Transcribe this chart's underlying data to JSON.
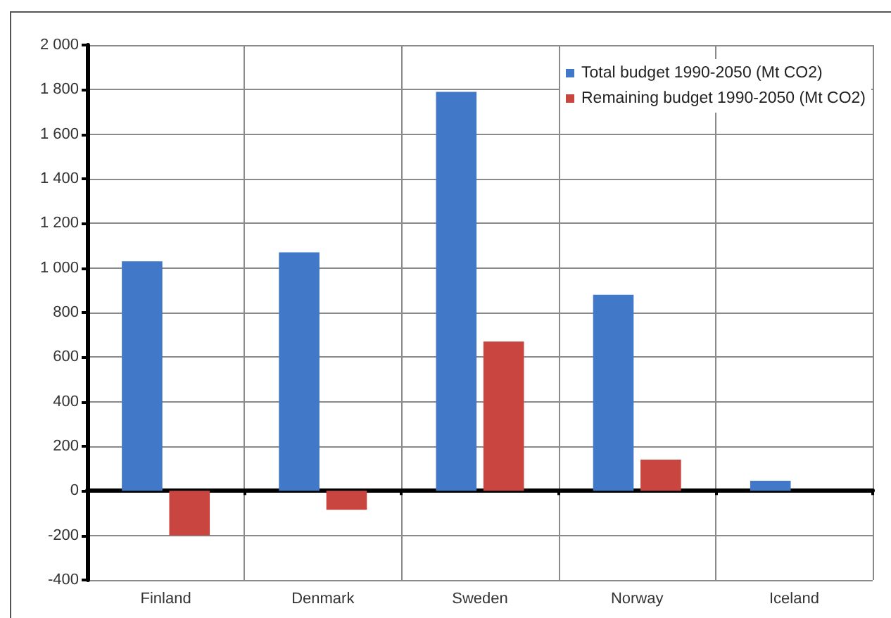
{
  "chart_data": {
    "type": "bar",
    "categories": [
      "Finland",
      "Denmark",
      "Sweden",
      "Norway",
      "Iceland"
    ],
    "series": [
      {
        "name": "Total budget 1990-2050 (Mt CO2)",
        "color": "#4178c8",
        "values": [
          1030,
          1070,
          1790,
          880,
          45
        ]
      },
      {
        "name": "Remaining budget 1990-2050 (Mt CO2)",
        "color": "#c8463f",
        "values": [
          -200,
          -85,
          670,
          140,
          null
        ]
      }
    ],
    "ylim": [
      -400,
      2000
    ],
    "yticks": [
      -400,
      -200,
      0,
      200,
      400,
      600,
      800,
      {
        "value": 1000,
        "label": "1 000"
      },
      {
        "value": 1200,
        "label": "1 200"
      },
      {
        "value": 1400,
        "label": "1 400"
      },
      {
        "value": 1600,
        "label": "1 600"
      },
      {
        "value": 1800,
        "label": "1 800"
      },
      {
        "value": 2000,
        "label": "2 000"
      }
    ],
    "grid": true,
    "legend": "top right"
  }
}
